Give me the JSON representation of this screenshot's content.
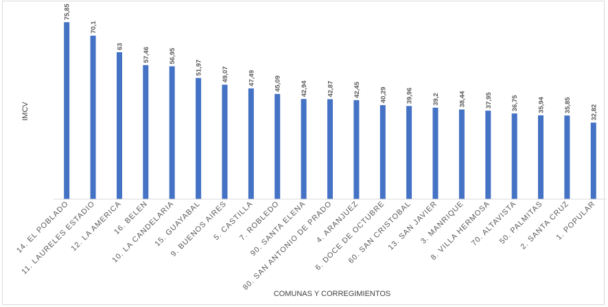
{
  "chart_data": {
    "type": "bar",
    "title": "",
    "xlabel": "COMUNAS Y CORREGIMIENTOS",
    "ylabel": "IMCV",
    "ylim": [
      0,
      80
    ],
    "grid": false,
    "legend": "none",
    "bar_color": "#4472c4",
    "categories": [
      "14. EL POBLADO",
      "11. LAURELES ESTADIO",
      "12. LA AMERICA",
      "16. BELEN",
      "10. LA CANDELARIA",
      "15. GUAYABAL",
      "9. BUENOS AIRES",
      "5. CASTILLA",
      "7. ROBLEDO",
      "90. SANTA ELENA",
      "80. SAN ANTONIO DE PRADO",
      "4. ARANJUEZ",
      "6. DOCE DE OCTUBRE",
      "60. SAN CRISTOBAL",
      "13. SAN JAVIER",
      "3. MANRIQUE",
      "8. VILLA HERMOSA",
      "70. ALTAVISTA",
      "50. PALMITAS",
      "2. SANTA CRUZ",
      "1. POPULAR"
    ],
    "values": [
      75.85,
      70.1,
      63,
      57.46,
      56.95,
      51.97,
      49.07,
      47.49,
      45.09,
      42.94,
      42.87,
      42.45,
      40.29,
      39.96,
      39.2,
      38.44,
      37.95,
      36.75,
      35.94,
      35.85,
      32.82
    ],
    "value_labels": [
      "75,85",
      "70,1",
      "63",
      "57,46",
      "56,95",
      "51,97",
      "49,07",
      "47,49",
      "45,09",
      "42,94",
      "42,87",
      "42,45",
      "40,29",
      "39,96",
      "39,2",
      "38,44",
      "37,95",
      "36,75",
      "35,94",
      "35,85",
      "32,82"
    ]
  }
}
